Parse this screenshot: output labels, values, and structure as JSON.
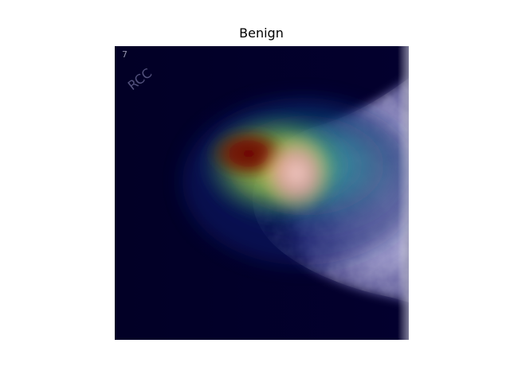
{
  "figure": {
    "title": "Benign"
  },
  "image": {
    "view_label": "RCC",
    "corner_mark": "7",
    "colormap": "jet",
    "background_color": "#02002a",
    "tissue_color": "#c8c8f0",
    "hotspot_core_color": "#6e0000",
    "hotspot_glow_color": "#f0b0b4"
  }
}
